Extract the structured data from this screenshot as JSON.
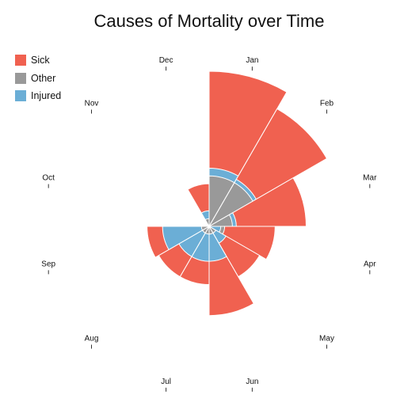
{
  "chart_data": {
    "type": "polar-area",
    "title": "Causes of Mortality over Time",
    "categories": [
      "Jan",
      "Feb",
      "Mar",
      "Apr",
      "May",
      "Jun",
      "Jul",
      "Aug",
      "Sep",
      "Oct",
      "Nov",
      "Dec"
    ],
    "series": [
      {
        "name": "Sick",
        "color": "#f06150",
        "values": [
          200,
          175,
          125,
          85,
          75,
          115,
          75,
          75,
          80,
          0,
          0,
          55
        ]
      },
      {
        "name": "Other",
        "color": "#999999",
        "values": [
          65,
          65,
          30,
          20,
          10,
          10,
          10,
          10,
          10,
          0,
          0,
          10
        ]
      },
      {
        "name": "Injured",
        "color": "#6baed6",
        "values": [
          75,
          70,
          35,
          15,
          25,
          45,
          45,
          45,
          60,
          0,
          0,
          20
        ]
      }
    ],
    "legend_position": "top-left"
  }
}
